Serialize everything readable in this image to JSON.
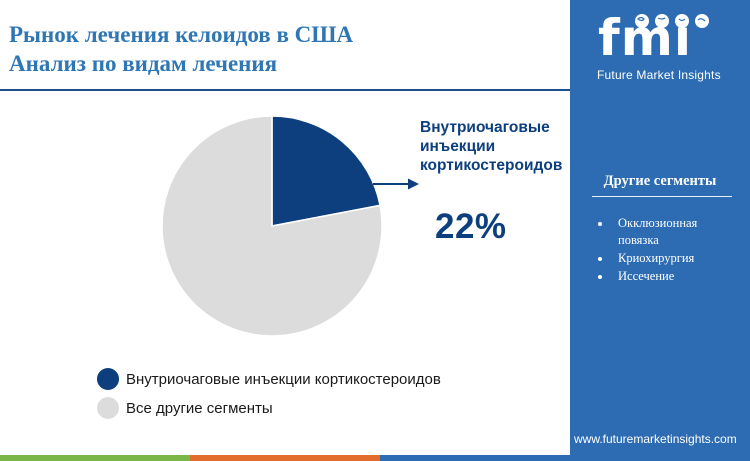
{
  "header": {
    "title_line1": "Рынок лечения келоидов в США",
    "title_line2": "Анализ по видам лечения"
  },
  "chart_data": {
    "type": "pie",
    "title": "Рынок лечения келоидов в США Анализ по видам лечения",
    "slices": [
      {
        "label": "Внутриочаговые инъекции кортикостероидов",
        "value": 22,
        "color": "#0d3f7e"
      },
      {
        "label": "Все другие сегменты",
        "value": 78,
        "color": "#dcdcdc"
      }
    ],
    "callout": {
      "label_lines": [
        "Внутриочаговые",
        "инъекции",
        "кортикостероидов"
      ],
      "value_text": "22%"
    },
    "legend": [
      {
        "label": "Внутриочаговые инъекции кортикостероидов",
        "color": "#0d3f7e"
      },
      {
        "label": "Все другие сегменты",
        "color": "#dcdcdc"
      }
    ],
    "legend_placement": "bottom-left"
  },
  "side_panel": {
    "logo_text": "fmi",
    "logo_subtitle": "Future Market Insights",
    "segments_title": "Другие сегменты",
    "segments": [
      "Окклюзионная повязка",
      "Криохирургия",
      "Иссечение"
    ],
    "website": "www.futuremarketinsights.com"
  },
  "colors": {
    "panel": "#2d6cb2",
    "title": "#2f76b5",
    "accent_dark": "#0d3f7e",
    "bar_green": "#7ab648",
    "bar_orange": "#e26b2e",
    "bar_blue": "#2d6cb2"
  }
}
